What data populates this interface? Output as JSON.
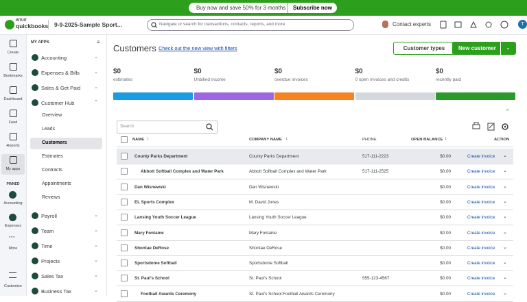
{
  "banner": {
    "text": "Buy now and save 50% for 3 months",
    "button": "Subscribe now"
  },
  "header": {
    "logo_top": "INTUIT",
    "logo": "quickbooks",
    "company": "9-9-2025-Sample Sport...",
    "search_placeholder": "Navigate or search for transactions, contacts, reports, and more",
    "contact": "Contact experts",
    "avatar": "T"
  },
  "rail": {
    "items": [
      "Create",
      "Bookmarks",
      "Dashboard",
      "Feed",
      "Reports",
      "My apps"
    ],
    "active_index": 5,
    "pinned_label": "PINNED",
    "pinned": [
      "Accounting",
      "Expenses"
    ],
    "more": "More",
    "customize": "Customize"
  },
  "sidebar": {
    "heading": "MY APPS",
    "apps_top": [
      "Accounting",
      "Expenses & Bills",
      "Sales & Get Paid",
      "Customer Hub"
    ],
    "hub_items": [
      "Overview",
      "Leads",
      "Customers",
      "Estimates",
      "Contracts",
      "Appointments",
      "Reviews"
    ],
    "active_index": 2,
    "apps_bottom": [
      "Payroll",
      "Team",
      "Time",
      "Projects",
      "Sales Tax",
      "Business Tax"
    ]
  },
  "main": {
    "title": "Customers",
    "link": "Check out the new view with filters",
    "button_secondary": "Customer types",
    "button_primary": "New customer"
  },
  "summary": [
    {
      "amount": "$0",
      "label": "estimates",
      "color": "#1a9ce0"
    },
    {
      "amount": "$0",
      "label": "Unbilled income",
      "color": "#9c67e0"
    },
    {
      "amount": "$0",
      "label": "overdue invoices",
      "color": "#f58320"
    },
    {
      "amount": "$0",
      "label": "0 open invoices and credits",
      "color": "#d4d7dc"
    },
    {
      "amount": "$0",
      "label": "recently paid",
      "color": "#2b9a2b"
    }
  ],
  "table": {
    "search_placeholder": "Search",
    "columns": [
      "NAME",
      "COMPANY NAME",
      "PHONE",
      "OPEN BALANCE",
      "ACTION"
    ],
    "rows": [
      {
        "name": "County Parks Department",
        "company": "County Parks Department",
        "phone": "517-111-2223",
        "balance": "$0.00",
        "action": "Create invoice",
        "sub": false,
        "hover": true
      },
      {
        "name": "Abbott Softball Complex and Water Park",
        "company": "Abbott Softball Complex and Water Park",
        "phone": "517-111-2525",
        "balance": "$0.00",
        "action": "Create invoice",
        "sub": true
      },
      {
        "name": "Dan Wisnewski",
        "company": "Dan Wisnewski",
        "phone": null,
        "balance": "$0.00",
        "action": "Create invoice",
        "sub": false
      },
      {
        "name": "EL Sports Complex",
        "company": "M. David Jones",
        "phone": null,
        "balance": "$0.00",
        "action": "Create invoice",
        "sub": false
      },
      {
        "name": "Lansing Youth Soccer League",
        "company": "Lansing Youth Soccer League",
        "phone": null,
        "balance": "$0.00",
        "action": "Create invoice",
        "sub": false
      },
      {
        "name": "Mary Fontaine",
        "company": "Mary Fontaine",
        "phone": null,
        "balance": "$0.00",
        "action": "Create invoice",
        "sub": false
      },
      {
        "name": "Shontae DeRose",
        "company": "Shontae DeRose",
        "phone": null,
        "balance": "$0.00",
        "action": "Create invoice",
        "sub": false
      },
      {
        "name": "Sportsdome Softball",
        "company": "Sportsdome Softball",
        "phone": null,
        "balance": "$0.00",
        "action": "Create invoice",
        "sub": false
      },
      {
        "name": "St. Paul's School",
        "company": "St. Paul's School",
        "phone": "555-123-4567",
        "balance": "$0.00",
        "action": "Create invoice",
        "sub": false
      },
      {
        "name": "Football Awards Ceremony",
        "company": "St. Paul's School:Football Awards Ceremony",
        "phone": null,
        "balance": "$0.00",
        "action": "Create invoice",
        "sub": true
      }
    ]
  }
}
